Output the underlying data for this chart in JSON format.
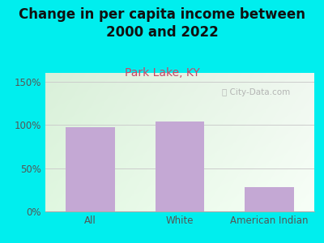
{
  "title": "Change in per capita income between\n2000 and 2022",
  "subtitle": "Park Lake, KY",
  "categories": [
    "All",
    "White",
    "American Indian"
  ],
  "values": [
    97,
    104,
    28
  ],
  "bar_color": "#c4a8d4",
  "title_fontsize": 12,
  "subtitle_fontsize": 10,
  "subtitle_color": "#cc4466",
  "title_color": "#111111",
  "background_color": "#00eeee",
  "ylim": [
    0,
    160
  ],
  "yticks": [
    0,
    50,
    100,
    150
  ],
  "ytick_labels": [
    "0%",
    "50%",
    "100%",
    "150%"
  ],
  "watermark": "City-Data.com",
  "bar_width": 0.55
}
